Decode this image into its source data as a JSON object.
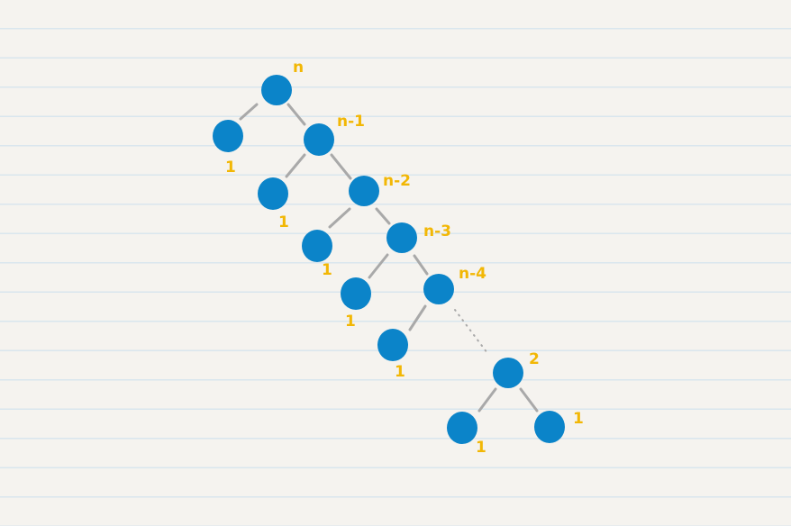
{
  "diagram": {
    "node_color": "#0b84c9",
    "label_color": "#f2b705",
    "edge_color": "#a9a9a9",
    "labels": {
      "n": "n",
      "n1": "n-1",
      "n2": "n-2",
      "n3": "n-3",
      "n4": "n-4",
      "two": "2",
      "one": "1"
    }
  }
}
